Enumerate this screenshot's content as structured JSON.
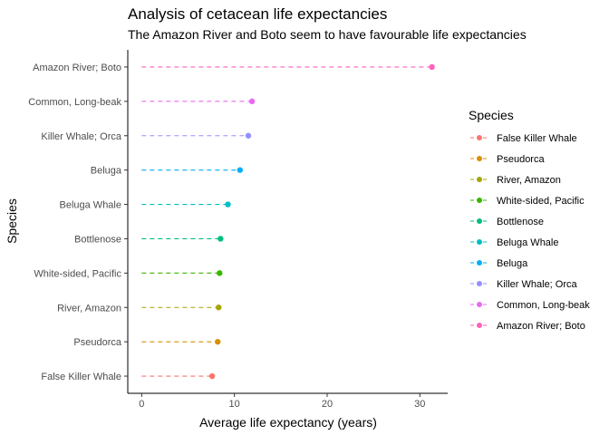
{
  "chart_data": {
    "type": "lollipop",
    "title": "Analysis of cetacean life expectancies",
    "subtitle": "The Amazon River and Boto seem to have favourable life expectancies",
    "xlabel": "Average life expectancy (years)",
    "ylabel": "Species",
    "xlim": [
      -1.5,
      33
    ],
    "xticks": [
      0,
      10,
      20,
      30
    ],
    "grid": false,
    "legend": {
      "title": "Species",
      "position": "right"
    },
    "categories": [
      "False Killer Whale",
      "Pseudorca",
      "River, Amazon",
      "White-sided, Pacific",
      "Bottlenose",
      "Beluga Whale",
      "Beluga",
      "Killer Whale; Orca",
      "Common, Long-beak",
      "Amazon River; Boto"
    ],
    "values": [
      7.6,
      8.2,
      8.3,
      8.4,
      8.5,
      9.3,
      10.6,
      11.5,
      11.9,
      31.3
    ],
    "colors": [
      "#F8766D",
      "#D89000",
      "#A3A500",
      "#39B600",
      "#00BF7D",
      "#00BFC4",
      "#00B0F6",
      "#9590FF",
      "#E76BF3",
      "#FF62BC"
    ]
  }
}
